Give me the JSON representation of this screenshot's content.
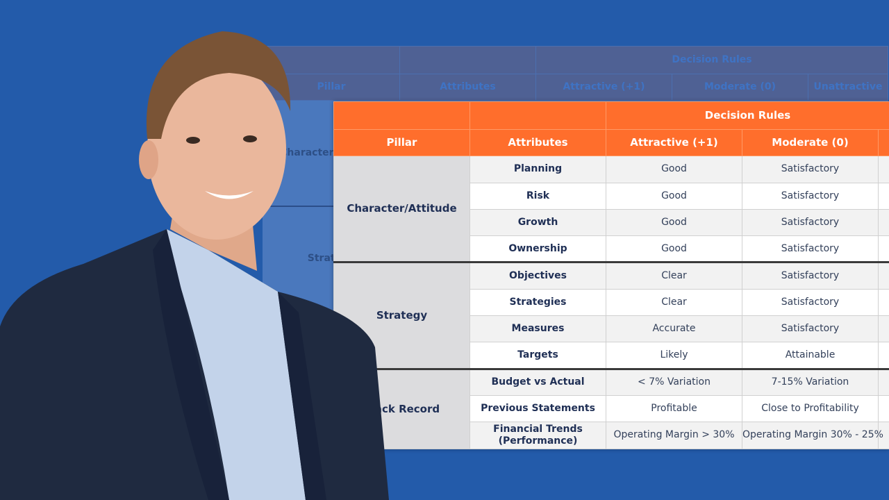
{
  "colors": {
    "background": "#235baa",
    "header": "#ff6e2c",
    "pillar_cell": "#dcdcde",
    "text": "#1f2f55"
  },
  "table": {
    "group_header": "Decision Rules",
    "columns": [
      "Pillar",
      "Attributes",
      "Attractive (+1)",
      "Moderate (0)",
      "Unattractive"
    ],
    "pillars": [
      {
        "name": "Character/Attitude",
        "rows": [
          {
            "attribute": "Planning",
            "attractive": "Good",
            "moderate": "Satisfactory"
          },
          {
            "attribute": "Risk",
            "attractive": "Good",
            "moderate": "Satisfactory"
          },
          {
            "attribute": "Growth",
            "attractive": "Good",
            "moderate": "Satisfactory"
          },
          {
            "attribute": "Ownership",
            "attractive": "Good",
            "moderate": "Satisfactory"
          }
        ]
      },
      {
        "name": "Strategy",
        "rows": [
          {
            "attribute": "Objectives",
            "attractive": "Clear",
            "moderate": "Satisfactory"
          },
          {
            "attribute": "Strategies",
            "attractive": "Clear",
            "moderate": "Satisfactory"
          },
          {
            "attribute": "Measures",
            "attractive": "Accurate",
            "moderate": "Satisfactory"
          },
          {
            "attribute": "Targets",
            "attractive": "Likely",
            "moderate": "Attainable"
          }
        ]
      },
      {
        "name": "Track Record",
        "rows": [
          {
            "attribute": "Budget vs Actual",
            "attractive": "< 7% Variation",
            "moderate": "7-15% Variation"
          },
          {
            "attribute": "Previous Statements",
            "attractive": "Profitable",
            "moderate": "Close to Profitability"
          },
          {
            "attribute": "Financial Trends (Performance)",
            "attractive": "Operating Margin > 30%",
            "moderate": "Operating Margin 30% - 25%"
          }
        ]
      }
    ]
  }
}
